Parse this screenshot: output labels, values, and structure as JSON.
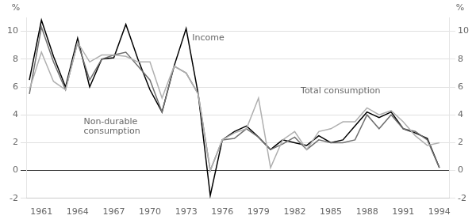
{
  "chart_data": {
    "type": "line",
    "x": [
      1960,
      1961,
      1962,
      1963,
      1964,
      1965,
      1966,
      1967,
      1968,
      1969,
      1970,
      1971,
      1972,
      1973,
      1974,
      1975,
      1976,
      1977,
      1978,
      1979,
      1980,
      1981,
      1982,
      1983,
      1984,
      1985,
      1986,
      1987,
      1988,
      1989,
      1990,
      1991,
      1992,
      1993,
      1994
    ],
    "series": [
      {
        "color": "#b0b0b0",
        "values": [
          5.8,
          8.5,
          6.4,
          5.8,
          9.2,
          7.8,
          8.3,
          8.3,
          8.2,
          7.8,
          7.8,
          5.2,
          7.5,
          7.0,
          5.5,
          0.0,
          2.2,
          2.7,
          3.0,
          5.2,
          0.2,
          2.2,
          2.8,
          1.5,
          2.8,
          3.0,
          3.5,
          3.5,
          4.5,
          4.0,
          4.3,
          3.5,
          2.5,
          1.8,
          2.0
        ]
      },
      {
        "color": "#707070",
        "values": [
          5.5,
          10.3,
          7.8,
          5.8,
          9.2,
          6.5,
          8.0,
          8.3,
          8.5,
          7.5,
          6.5,
          4.2,
          7.5,
          7.0,
          5.5,
          0.0,
          2.2,
          2.3,
          3.0,
          2.4,
          1.5,
          1.9,
          2.4,
          1.5,
          2.2,
          2.0,
          2.0,
          2.2,
          4.0,
          3.0,
          4.0,
          3.0,
          2.8,
          2.2,
          0.2
        ]
      },
      {
        "color": "#000000",
        "values": [
          6.5,
          10.8,
          8.2,
          6.0,
          9.5,
          6.0,
          8.0,
          8.1,
          10.5,
          8.0,
          5.8,
          4.2,
          7.5,
          10.2,
          5.5,
          -1.8,
          2.2,
          2.8,
          3.2,
          2.4,
          1.5,
          2.2,
          2.0,
          1.8,
          2.5,
          2.0,
          2.2,
          3.2,
          4.2,
          3.8,
          4.2,
          3.0,
          2.7,
          2.3,
          0.2
        ]
      }
    ],
    "xlim": [
      1959.8,
      1994.8
    ],
    "xticks": [
      1961,
      1964,
      1967,
      1970,
      1973,
      1976,
      1979,
      1982,
      1985,
      1988,
      1991,
      1994
    ],
    "ylim": [
      -2,
      11
    ],
    "yticks": [
      -2,
      0,
      2,
      4,
      6,
      8,
      10
    ],
    "y2lim": [
      -2,
      11
    ],
    "y2ticks": [
      -2,
      0,
      2,
      4,
      6,
      8,
      10
    ],
    "ylabel": "%",
    "y2label": "%",
    "annotations": [
      {
        "text": "Income",
        "x": 1973.5,
        "y": 9.2
      },
      {
        "text": "Total consumption",
        "x": 1982.5,
        "y": 5.4
      },
      {
        "text": "Non-durable",
        "x": 1964.5,
        "y": 3.2
      },
      {
        "text": "consumption",
        "x": 1964.5,
        "y": 2.5
      }
    ],
    "grid": true
  }
}
